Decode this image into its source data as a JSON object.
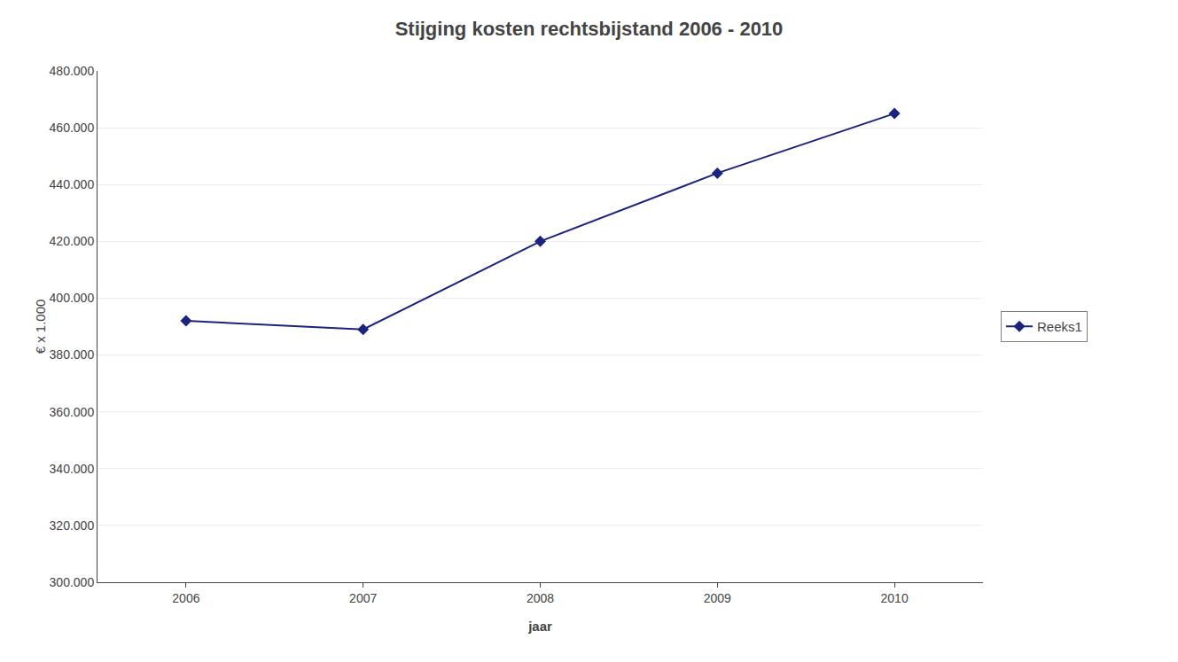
{
  "chart_data": {
    "type": "line",
    "title": "Stijging kosten rechtsbijstand 2006 - 2010",
    "xlabel": "jaar",
    "ylabel": "€ x 1.000",
    "x": [
      2006,
      2007,
      2008,
      2009,
      2010
    ],
    "series": [
      {
        "name": "Reeks1",
        "color": "#1a237e",
        "marker": "diamond",
        "line_style": "solid",
        "values": [
          392000,
          389000,
          420000,
          444000,
          465000
        ]
      }
    ],
    "xlim": [
      2005.5,
      2010.5
    ],
    "xticks": [
      2006,
      2007,
      2008,
      2009,
      2010
    ],
    "ylim": [
      300000,
      480000
    ],
    "yticks": [
      {
        "value": 300000,
        "label": "300.000"
      },
      {
        "value": 320000,
        "label": "320.000"
      },
      {
        "value": 340000,
        "label": "340.000"
      },
      {
        "value": 360000,
        "label": "360.000"
      },
      {
        "value": 380000,
        "label": "380.000"
      },
      {
        "value": 400000,
        "label": "400.000"
      },
      {
        "value": 420000,
        "label": "420.000"
      },
      {
        "value": 440000,
        "label": "440.000"
      },
      {
        "value": 460000,
        "label": "460.000"
      },
      {
        "value": 480000,
        "label": "480.000"
      }
    ],
    "grid": "y",
    "legend": "right"
  }
}
